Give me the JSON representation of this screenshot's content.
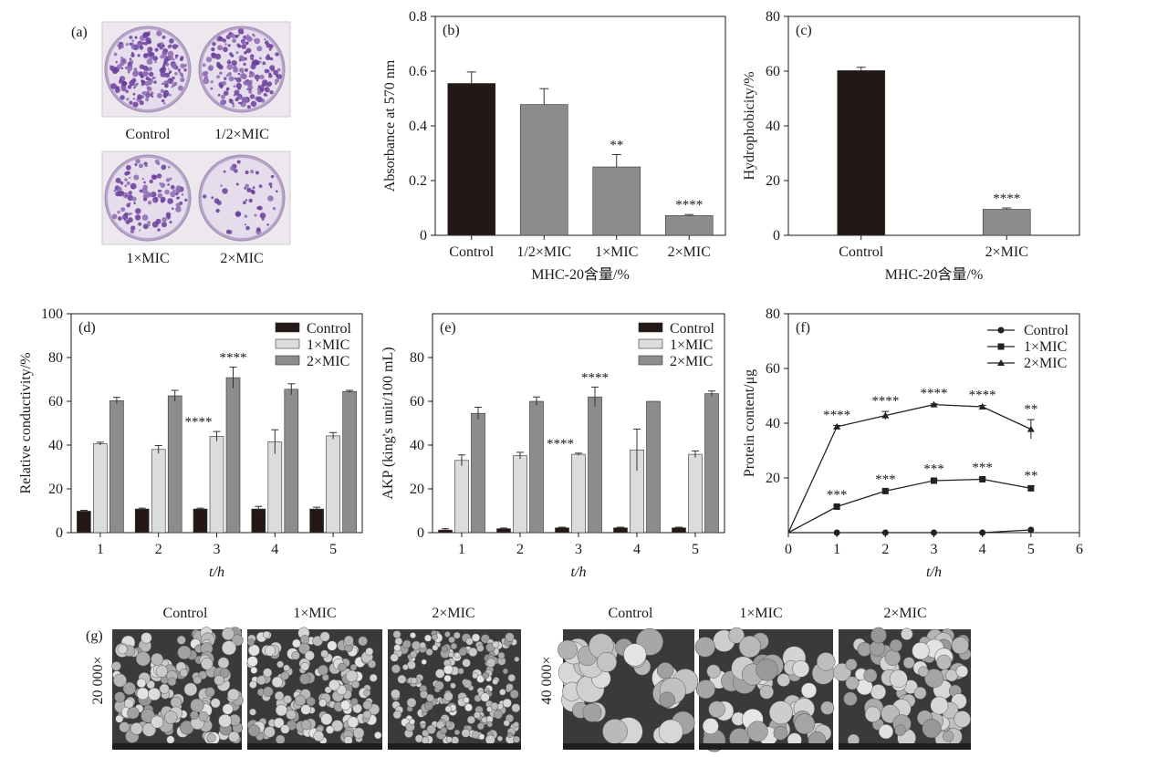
{
  "colors": {
    "dark": "#231815",
    "gray": "#8c8c8c",
    "light": "#dcdcdc",
    "axis": "#1a1a1a",
    "crystal_violet": "#6a3d9a",
    "sem_bg": "#3a3a3a"
  },
  "panel_a": {
    "label": "(a)",
    "wells": [
      "Control",
      "1/2×MIC",
      "1×MIC",
      "2×MIC"
    ]
  },
  "chart_data": [
    {
      "id": "b",
      "panel_label": "(b)",
      "type": "bar",
      "categories": [
        "Control",
        "1/2×MIC",
        "1×MIC",
        "2×MIC"
      ],
      "values": [
        0.555,
        0.478,
        0.25,
        0.072
      ],
      "errors": [
        0.042,
        0.058,
        0.045,
        0.004
      ],
      "significance": [
        "",
        "",
        "**",
        "****"
      ],
      "bar_colors": [
        "dark",
        "gray",
        "gray",
        "gray"
      ],
      "xlabel": "MHC-20含量/%",
      "ylabel": "Absorbance at 570 nm",
      "ylim": [
        0,
        0.8
      ],
      "yticks": [
        0,
        0.2,
        0.4,
        0.6,
        0.8
      ],
      "ytick_labels": [
        "0",
        "0.2",
        "0.4",
        "0.6",
        "0.8"
      ]
    },
    {
      "id": "c",
      "panel_label": "(c)",
      "type": "bar",
      "categories": [
        "Control",
        "2×MIC"
      ],
      "values": [
        60.2,
        9.5
      ],
      "errors": [
        1.2,
        0.5
      ],
      "significance": [
        "",
        "****"
      ],
      "bar_colors": [
        "dark",
        "gray"
      ],
      "xlabel": "MHC-20含量/%",
      "ylabel": "Hydrophobicity/%",
      "ylim": [
        0,
        80
      ],
      "yticks": [
        0,
        20,
        40,
        60,
        80
      ],
      "ytick_labels": [
        "0",
        "20",
        "40",
        "60",
        "80"
      ]
    },
    {
      "id": "d",
      "panel_label": "(d)",
      "type": "bar",
      "categories": [
        "1",
        "2",
        "3",
        "4",
        "5"
      ],
      "series": [
        {
          "name": "Control",
          "color": "dark",
          "values": [
            9.8,
            10.8,
            10.8,
            10.8,
            10.8
          ],
          "errors": [
            0.4,
            0.4,
            0.4,
            1.2,
            0.8
          ]
        },
        {
          "name": "1×MIC",
          "color": "light",
          "values": [
            40.6,
            38.0,
            44.0,
            41.5,
            44.2
          ],
          "errors": [
            0.7,
            1.8,
            2.2,
            5.5,
            1.5
          ]
        },
        {
          "name": "2×MIC",
          "color": "gray",
          "values": [
            60.3,
            62.5,
            70.8,
            65.5,
            64.5
          ],
          "errors": [
            1.5,
            2.5,
            4.8,
            2.5,
            0.5
          ]
        }
      ],
      "significance": [
        {
          "group": 2,
          "series": 1,
          "text": "****"
        },
        {
          "group": 2,
          "series": 2,
          "text": "****"
        }
      ],
      "xlabel": "t/h",
      "ylabel": "Relative  conductivity/%",
      "ylim": [
        0,
        100
      ],
      "yticks": [
        0,
        20,
        40,
        60,
        80,
        100
      ],
      "ytick_labels": [
        "0",
        "20",
        "40",
        "60",
        "80",
        "100"
      ],
      "legend": "top-right"
    },
    {
      "id": "e",
      "panel_label": "(e)",
      "type": "bar",
      "categories": [
        "1",
        "2",
        "3",
        "4",
        "5"
      ],
      "series": [
        {
          "name": "Control",
          "color": "dark",
          "values": [
            1.2,
            1.8,
            2.2,
            2.2,
            2.2
          ],
          "errors": [
            0.6,
            0.3,
            0.3,
            0.3,
            0.3
          ]
        },
        {
          "name": "1×MIC",
          "color": "light",
          "values": [
            33.0,
            35.2,
            35.8,
            37.8,
            35.8
          ],
          "errors": [
            2.5,
            1.5,
            0.5,
            9.5,
            1.5
          ]
        },
        {
          "name": "2×MIC",
          "color": "gray",
          "values": [
            54.5,
            60.0,
            62.0,
            60.0,
            63.5
          ],
          "errors": [
            2.8,
            2.0,
            4.5,
            0,
            1.2
          ]
        }
      ],
      "significance": [
        {
          "group": 2,
          "series": 1,
          "text": "****"
        },
        {
          "group": 2,
          "series": 2,
          "text": "****"
        }
      ],
      "xlabel": "t/h",
      "ylabel": "AKP (king's unit/100 mL)",
      "ylim": [
        0,
        100
      ],
      "yticks": [
        0,
        20,
        40,
        60,
        80
      ],
      "ytick_labels": [
        "0",
        "20",
        "40",
        "60",
        "80"
      ],
      "legend": "top-right"
    },
    {
      "id": "f",
      "panel_label": "(f)",
      "type": "line",
      "x": [
        0,
        1,
        2,
        3,
        4,
        5
      ],
      "series": [
        {
          "name": "Control",
          "marker": "circle",
          "values": [
            0,
            0,
            0,
            0,
            0,
            1.0
          ],
          "errors": [
            0,
            0,
            0,
            0,
            0,
            0
          ],
          "labels": [
            "",
            "",
            "",
            "",
            "",
            ""
          ]
        },
        {
          "name": "1×MIC",
          "marker": "square",
          "values": [
            0,
            9.5,
            15.2,
            19.0,
            19.5,
            16.2
          ],
          "errors": [
            0,
            0.5,
            0.5,
            0.5,
            0.5,
            0.8
          ],
          "labels": [
            "",
            "***",
            "***",
            "***",
            "***",
            "**"
          ]
        },
        {
          "name": "2×MIC",
          "marker": "triangle",
          "values": [
            0,
            38.7,
            42.8,
            46.8,
            46.0,
            37.8
          ],
          "errors": [
            0,
            0.5,
            1.5,
            0.3,
            0.5,
            3.5
          ],
          "labels": [
            "",
            "****",
            "****",
            "****",
            "****",
            "**"
          ]
        }
      ],
      "xlabel": "t/h",
      "ylabel": "Protein content/μg",
      "xlim": [
        0,
        6
      ],
      "ylim": [
        0,
        80
      ],
      "xticks": [
        0,
        1,
        2,
        3,
        4,
        5,
        6
      ],
      "yticks": [
        20,
        40,
        60,
        80
      ],
      "ytick_labels": [
        "20",
        "40",
        "60",
        "80"
      ],
      "legend": "top-right"
    }
  ],
  "panel_g": {
    "label": "(g)",
    "groups": [
      {
        "magnification": "20 000×",
        "labels": [
          "Control",
          "1×MIC",
          "2×MIC"
        ]
      },
      {
        "magnification": "40 000×",
        "labels": [
          "Control",
          "1×MIC",
          "2×MIC"
        ]
      }
    ]
  }
}
